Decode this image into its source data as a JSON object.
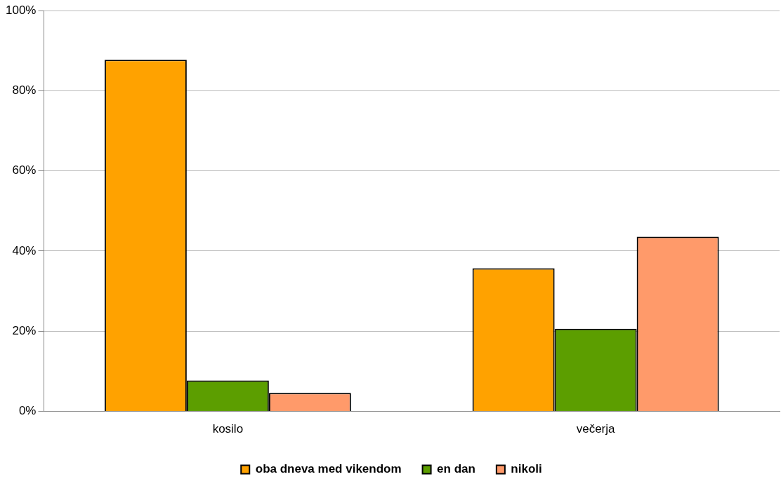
{
  "chart_data": {
    "type": "bar",
    "categories": [
      "kosilo",
      "večerja"
    ],
    "series": [
      {
        "name": "oba dneva med vikendom",
        "color": "#ffa200",
        "values": [
          87.7,
          35.7
        ]
      },
      {
        "name": "en dan",
        "color": "#5c9e00",
        "values": [
          7.7,
          20.6
        ]
      },
      {
        "name": "nikoli",
        "color": "#ff9a6a",
        "values": [
          4.6,
          43.6
        ]
      }
    ],
    "ylim": [
      0,
      100
    ],
    "yticks": [
      {
        "value": 0,
        "label": "0%"
      },
      {
        "value": 20,
        "label": "20%"
      },
      {
        "value": 40,
        "label": "40%"
      },
      {
        "value": 60,
        "label": "60%"
      },
      {
        "value": 80,
        "label": "80%"
      },
      {
        "value": 100,
        "label": "100%"
      }
    ],
    "grid": "y",
    "legend": "bottom"
  }
}
